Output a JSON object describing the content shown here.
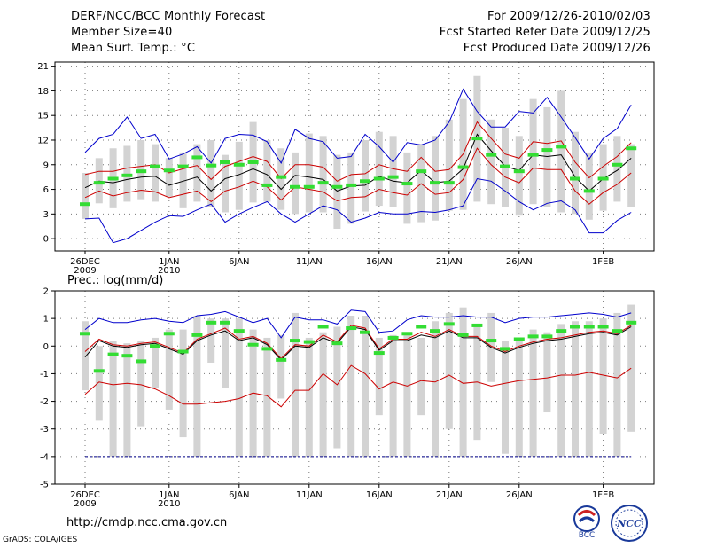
{
  "header": {
    "title": "DERF/NCC/BCC Monthly Forecast",
    "member_size": "Member Size=40",
    "variable": "Mean Surf. Temp.: °C",
    "period": "For 2009/12/26-2010/02/03",
    "started": "Fcst Started Refer Date 2009/12/25",
    "produced": "Fcst Produced Date 2009/12/26"
  },
  "footer": {
    "url": "http://cmdp.ncc.cma.gov.cn",
    "grads": "GrADS: COLA/IGES",
    "logo_left_text": "BCC",
    "logo_right_text": "NCC"
  },
  "colors": {
    "box": "#d3d3d3",
    "mean": "#000000",
    "inner": "#cc0000",
    "outer": "#0000cc",
    "obs": "#33dd33",
    "floor": "#000088"
  },
  "chart_data": [
    {
      "type": "box-ensemble",
      "title": "Mean Surf. Temp.: °C",
      "ylim": [
        -1.5,
        21.5
      ],
      "yticks": [
        0,
        3,
        6,
        9,
        12,
        15,
        18,
        21
      ],
      "x_ticks": [
        {
          "day": 0,
          "label": "26DEC",
          "sub": "2009"
        },
        {
          "day": 6,
          "label": "1JAN",
          "sub": "2010"
        },
        {
          "day": 11,
          "label": "6JAN",
          "sub": ""
        },
        {
          "day": 16,
          "label": "11JAN",
          "sub": ""
        },
        {
          "day": 21,
          "label": "16JAN",
          "sub": ""
        },
        {
          "day": 26,
          "label": "21JAN",
          "sub": ""
        },
        {
          "day": 31,
          "label": "26JAN",
          "sub": ""
        },
        {
          "day": 37,
          "label": "1FEB",
          "sub": ""
        }
      ],
      "box_low": [
        2.4,
        4.3,
        3.7,
        4.5,
        4.8,
        4.5,
        5.1,
        3.7,
        4.5,
        3.8,
        3.2,
        3.5,
        4.4,
        4.5,
        3.5,
        3.0,
        3.2,
        3.2,
        1.2,
        1.8,
        3.3,
        4.0,
        3.8,
        1.8,
        2.0,
        2.2,
        3.4,
        3.5,
        4.5,
        4.2,
        3.8,
        2.8,
        4.2,
        3.8,
        3.2,
        3.0,
        2.3,
        3.4,
        4.5,
        3.8
      ],
      "box_high": [
        8.0,
        9.8,
        11.0,
        11.3,
        12.0,
        11.5,
        9.8,
        10.5,
        11.5,
        12.0,
        10.2,
        11.8,
        14.2,
        12.0,
        11.0,
        10.5,
        12.8,
        12.5,
        10.2,
        10.5,
        12.0,
        13.0,
        12.5,
        10.5,
        11.5,
        12.5,
        14.5,
        17.0,
        19.8,
        14.5,
        13.5,
        12.5,
        17.0,
        16.0,
        18.0,
        13.0,
        10.5,
        11.5,
        12.5,
        11.5
      ],
      "mean": [
        6.2,
        7.0,
        6.8,
        7.2,
        7.5,
        7.6,
        6.5,
        7.0,
        7.5,
        5.8,
        7.3,
        7.8,
        8.5,
        7.8,
        6.0,
        7.7,
        7.5,
        7.2,
        5.8,
        6.4,
        6.5,
        7.6,
        7.0,
        6.8,
        8.3,
        6.8,
        7.0,
        8.5,
        12.7,
        10.7,
        8.8,
        8.3,
        10.2,
        10.0,
        10.2,
        7.5,
        5.8,
        7.3,
        8.3,
        9.8
      ],
      "inner_low": [
        5.0,
        5.8,
        5.2,
        5.6,
        5.9,
        5.7,
        5.0,
        5.4,
        5.8,
        4.5,
        5.8,
        6.3,
        7.0,
        6.3,
        4.7,
        6.3,
        6.0,
        5.7,
        4.6,
        5.0,
        5.1,
        6.0,
        5.6,
        5.3,
        6.7,
        5.4,
        5.6,
        7.2,
        11.0,
        9.0,
        7.5,
        6.8,
        8.6,
        8.4,
        8.4,
        5.8,
        4.2,
        5.6,
        6.6,
        8.0
      ],
      "inner_high": [
        7.8,
        8.2,
        8.2,
        8.6,
        8.8,
        9.0,
        8.0,
        8.5,
        8.9,
        7.2,
        8.8,
        9.4,
        10.0,
        9.4,
        7.3,
        9.0,
        9.0,
        8.7,
        7.0,
        7.8,
        7.9,
        9.0,
        8.5,
        8.2,
        9.9,
        8.2,
        8.4,
        10.3,
        14.2,
        12.2,
        10.3,
        9.8,
        11.8,
        11.6,
        11.9,
        9.3,
        7.4,
        8.8,
        10.0,
        11.7
      ],
      "outer_low": [
        2.4,
        2.5,
        -0.5,
        0.0,
        1.0,
        2.0,
        2.8,
        2.7,
        3.5,
        4.2,
        2.0,
        3.0,
        3.8,
        4.5,
        3.0,
        2.0,
        3.0,
        4.0,
        3.5,
        2.0,
        2.5,
        3.2,
        3.0,
        3.0,
        3.3,
        3.2,
        3.5,
        4.0,
        7.3,
        7.0,
        5.8,
        4.5,
        3.5,
        4.3,
        4.6,
        3.5,
        0.7,
        0.7,
        2.2,
        3.2
      ],
      "outer_high": [
        10.5,
        12.2,
        12.7,
        14.8,
        12.2,
        12.7,
        9.7,
        10.3,
        11.2,
        9.2,
        12.2,
        12.7,
        12.6,
        11.8,
        9.2,
        13.3,
        12.2,
        11.8,
        9.8,
        10.0,
        12.7,
        11.2,
        9.3,
        11.7,
        11.4,
        12.0,
        14.2,
        18.2,
        15.5,
        13.6,
        13.6,
        15.5,
        15.3,
        17.2,
        14.8,
        12.3,
        9.7,
        12.2,
        13.4,
        16.3
      ],
      "obs": [
        4.2,
        6.8,
        7.3,
        7.7,
        8.2,
        8.8,
        8.3,
        8.8,
        9.9,
        8.9,
        9.3,
        9.0,
        9.3,
        6.5,
        7.5,
        6.3,
        6.3,
        6.8,
        6.3,
        6.5,
        7.0,
        7.3,
        7.5,
        6.7,
        8.2,
        6.8,
        6.8,
        8.7,
        12.2,
        10.2,
        8.8,
        8.2,
        10.2,
        10.8,
        11.2,
        7.3,
        5.8,
        7.3,
        9.0,
        11.0
      ]
    },
    {
      "type": "box-ensemble",
      "title": "Prec.: log(mm/d)",
      "ylim": [
        -5,
        2
      ],
      "yticks": [
        -5,
        -4,
        -3,
        -2,
        -1,
        0,
        1,
        2
      ],
      "floor_line": -4,
      "x_ticks": [
        {
          "day": 0,
          "label": "26DEC",
          "sub": "2009"
        },
        {
          "day": 6,
          "label": "1JAN",
          "sub": "2010"
        },
        {
          "day": 11,
          "label": "6JAN",
          "sub": ""
        },
        {
          "day": 16,
          "label": "11JAN",
          "sub": ""
        },
        {
          "day": 21,
          "label": "16JAN",
          "sub": ""
        },
        {
          "day": 26,
          "label": "21JAN",
          "sub": ""
        },
        {
          "day": 31,
          "label": "26JAN",
          "sub": ""
        },
        {
          "day": 37,
          "label": "1FEB",
          "sub": ""
        }
      ],
      "box_low": [
        -1.6,
        -2.7,
        -4.0,
        -4.0,
        -2.9,
        -1.5,
        -2.3,
        -3.3,
        -4.0,
        -0.6,
        -1.5,
        -4.0,
        -4.0,
        -4.0,
        -1.9,
        -4.0,
        -4.0,
        -4.0,
        -3.7,
        -4.0,
        -4.0,
        -2.5,
        -4.0,
        -4.0,
        -2.5,
        -4.0,
        -3.0,
        -4.0,
        -3.4,
        -1.3,
        -3.9,
        -4.0,
        -4.0,
        -2.4,
        -4.0,
        -4.0,
        -4.0,
        -3.2,
        -4.0,
        -3.1
      ],
      "box_high": [
        0.9,
        0.0,
        0.2,
        0.1,
        0.2,
        0.3,
        0.6,
        0.6,
        1.1,
        1.0,
        1.0,
        1.0,
        0.6,
        0.3,
        0.4,
        1.2,
        0.3,
        0.5,
        0.7,
        1.1,
        1.1,
        0.3,
        0.4,
        0.5,
        0.3,
        0.9,
        1.2,
        1.4,
        0.7,
        1.2,
        0.2,
        0.2,
        0.6,
        0.5,
        0.8,
        0.9,
        0.9,
        1.0,
        1.2,
        1.5
      ],
      "mean": [
        -0.4,
        0.2,
        0.0,
        -0.05,
        0.05,
        0.1,
        -0.1,
        -0.3,
        0.2,
        0.4,
        0.55,
        0.2,
        0.3,
        0.05,
        -0.5,
        0.0,
        -0.05,
        0.3,
        0.1,
        0.7,
        0.6,
        -0.15,
        0.2,
        0.2,
        0.4,
        0.3,
        0.55,
        0.3,
        0.3,
        -0.05,
        -0.25,
        -0.05,
        0.1,
        0.2,
        0.25,
        0.35,
        0.45,
        0.5,
        0.4,
        0.7
      ],
      "inner_low": [
        -1.75,
        -1.3,
        -1.4,
        -1.35,
        -1.4,
        -1.55,
        -1.8,
        -2.1,
        -2.1,
        -2.05,
        -2.0,
        -1.9,
        -1.7,
        -1.8,
        -2.2,
        -1.6,
        -1.6,
        -1.0,
        -1.4,
        -0.7,
        -1.0,
        -1.55,
        -1.3,
        -1.45,
        -1.25,
        -1.3,
        -1.05,
        -1.35,
        -1.3,
        -1.45,
        -1.35,
        -1.25,
        -1.2,
        -1.15,
        -1.05,
        -1.05,
        -0.95,
        -1.05,
        -1.15,
        -0.8
      ],
      "inner_high": [
        -0.2,
        0.25,
        0.05,
        0.0,
        0.1,
        0.15,
        -0.05,
        -0.25,
        0.25,
        0.45,
        0.65,
        0.25,
        0.35,
        0.1,
        -0.45,
        0.05,
        0.0,
        0.4,
        0.15,
        0.75,
        0.65,
        -0.1,
        0.25,
        0.25,
        0.5,
        0.35,
        0.6,
        0.35,
        0.35,
        0.0,
        -0.2,
        0.0,
        0.15,
        0.25,
        0.3,
        0.4,
        0.5,
        0.55,
        0.45,
        0.75
      ],
      "outer_low": null,
      "outer_high": [
        0.6,
        1.0,
        0.85,
        0.85,
        0.95,
        1.0,
        0.9,
        0.85,
        1.1,
        1.15,
        1.25,
        1.05,
        0.85,
        1.0,
        0.3,
        1.05,
        0.95,
        0.95,
        0.8,
        1.3,
        1.25,
        0.5,
        0.55,
        0.95,
        1.1,
        1.05,
        1.05,
        1.1,
        1.05,
        1.05,
        0.85,
        1.0,
        1.05,
        1.05,
        1.1,
        1.15,
        1.2,
        1.15,
        1.05,
        1.2
      ],
      "obs": [
        0.45,
        -0.9,
        -0.3,
        -0.35,
        -0.55,
        0.0,
        0.45,
        -0.2,
        0.4,
        0.85,
        0.85,
        0.55,
        0.05,
        -0.1,
        -0.5,
        0.2,
        0.15,
        0.7,
        0.1,
        0.65,
        0.5,
        -0.25,
        0.3,
        0.45,
        0.7,
        0.55,
        0.8,
        0.4,
        0.75,
        0.2,
        -0.1,
        0.25,
        0.35,
        0.35,
        0.55,
        0.7,
        0.7,
        0.7,
        0.55,
        0.85
      ]
    }
  ]
}
